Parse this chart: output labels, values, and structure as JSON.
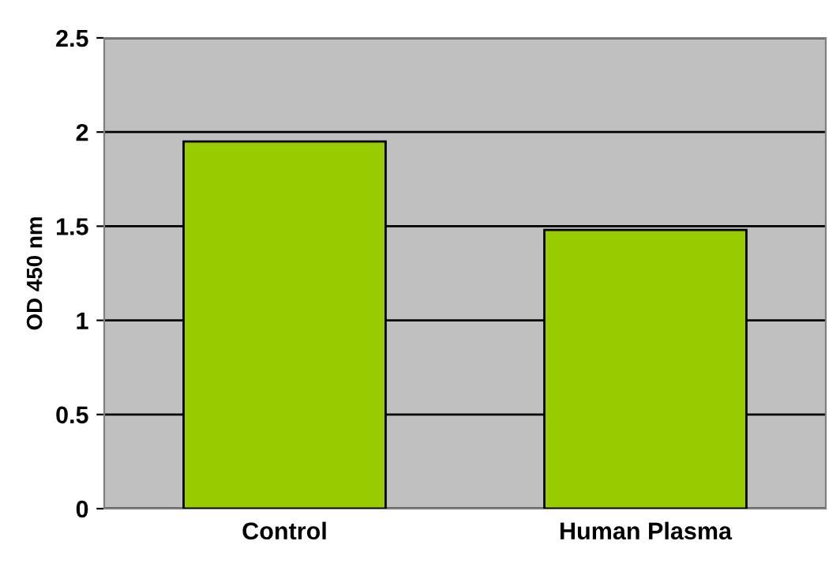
{
  "chart_data": {
    "type": "bar",
    "ylabel": "OD 450 nm",
    "categories": [
      "Control",
      "Human Plasma"
    ],
    "values": [
      1.95,
      1.48
    ],
    "color": "#99cc00",
    "ylim": [
      0,
      2.5
    ],
    "yticks": [
      0,
      0.5,
      1,
      1.5,
      2,
      2.5
    ],
    "grid": "y",
    "legend": false
  }
}
